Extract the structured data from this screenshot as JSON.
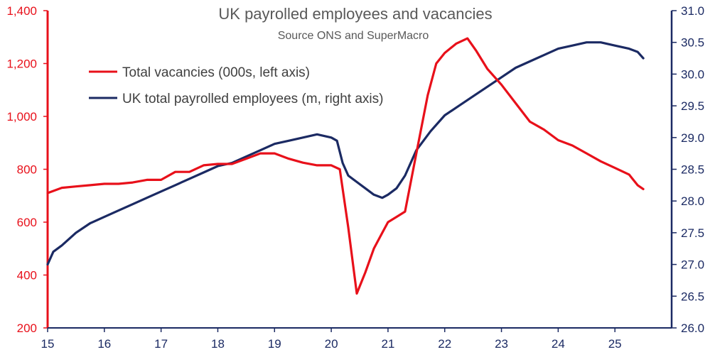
{
  "chart_data": {
    "type": "line",
    "title": "UK payrolled employees and vacancies",
    "subtitle": "Source ONS and SuperMacro",
    "colors": {
      "vacancies": "#e8101a",
      "employees": "#1b2a63"
    },
    "left_axis": {
      "ylim": [
        200,
        1400
      ],
      "ticks": [
        200,
        400,
        600,
        800,
        1000,
        1200,
        1400
      ],
      "tick_labels": [
        "200",
        "400",
        "600",
        "800",
        "1,000",
        "1,200",
        "1,400"
      ]
    },
    "right_axis": {
      "ylim": [
        26.0,
        31.0
      ],
      "ticks": [
        26.0,
        26.5,
        27.0,
        27.5,
        28.0,
        28.5,
        29.0,
        29.5,
        30.0,
        30.5,
        31.0
      ],
      "tick_labels": [
        "26.0",
        "26.5",
        "27.0",
        "27.5",
        "28.0",
        "28.5",
        "29.0",
        "29.5",
        "30.0",
        "30.5",
        "31.0"
      ]
    },
    "x_axis": {
      "xlim": [
        15,
        26
      ],
      "ticks": [
        15,
        16,
        17,
        18,
        19,
        20,
        21,
        22,
        23,
        24,
        25
      ],
      "tick_labels": [
        "15",
        "16",
        "17",
        "18",
        "19",
        "20",
        "21",
        "22",
        "23",
        "24",
        "25"
      ]
    },
    "legend_position": "top-left",
    "grid": false,
    "series": [
      {
        "name": "Total vacancies (000s, left axis)",
        "axis": "left",
        "x": [
          15.0,
          15.25,
          15.5,
          15.75,
          16.0,
          16.25,
          16.5,
          16.75,
          17.0,
          17.25,
          17.5,
          17.75,
          18.0,
          18.25,
          18.5,
          18.75,
          19.0,
          19.25,
          19.5,
          19.75,
          20.0,
          20.15,
          20.3,
          20.45,
          20.6,
          20.75,
          20.9,
          21.0,
          21.15,
          21.3,
          21.5,
          21.7,
          21.85,
          22.0,
          22.2,
          22.4,
          22.55,
          22.75,
          23.0,
          23.25,
          23.5,
          23.75,
          24.0,
          24.25,
          24.5,
          24.75,
          25.0,
          25.25,
          25.4,
          25.5
        ],
        "values": [
          710,
          730,
          735,
          740,
          745,
          745,
          750,
          760,
          760,
          790,
          790,
          815,
          820,
          820,
          840,
          860,
          860,
          840,
          825,
          815,
          815,
          800,
          580,
          330,
          410,
          500,
          560,
          600,
          620,
          640,
          860,
          1080,
          1200,
          1240,
          1275,
          1295,
          1250,
          1180,
          1120,
          1050,
          980,
          950,
          910,
          890,
          860,
          830,
          805,
          780,
          740,
          725
        ]
      },
      {
        "name": "UK total payrolled employees (m, right axis)",
        "axis": "right",
        "x": [
          15.0,
          15.1,
          15.25,
          15.5,
          15.75,
          16.0,
          16.25,
          16.5,
          16.75,
          17.0,
          17.25,
          17.5,
          17.75,
          18.0,
          18.25,
          18.5,
          18.75,
          19.0,
          19.25,
          19.5,
          19.75,
          20.0,
          20.1,
          20.2,
          20.3,
          20.45,
          20.6,
          20.75,
          20.9,
          21.0,
          21.15,
          21.3,
          21.5,
          21.75,
          22.0,
          22.25,
          22.5,
          22.75,
          23.0,
          23.25,
          23.5,
          23.75,
          24.0,
          24.25,
          24.5,
          24.75,
          25.0,
          25.25,
          25.4,
          25.5
        ],
        "values": [
          27.0,
          27.2,
          27.3,
          27.5,
          27.65,
          27.75,
          27.85,
          27.95,
          28.05,
          28.15,
          28.25,
          28.35,
          28.45,
          28.55,
          28.6,
          28.7,
          28.8,
          28.9,
          28.95,
          29.0,
          29.05,
          29.0,
          28.95,
          28.6,
          28.4,
          28.3,
          28.2,
          28.1,
          28.05,
          28.1,
          28.2,
          28.4,
          28.8,
          29.1,
          29.35,
          29.5,
          29.65,
          29.8,
          29.95,
          30.1,
          30.2,
          30.3,
          30.4,
          30.45,
          30.5,
          30.5,
          30.45,
          30.4,
          30.35,
          30.25
        ]
      }
    ]
  }
}
